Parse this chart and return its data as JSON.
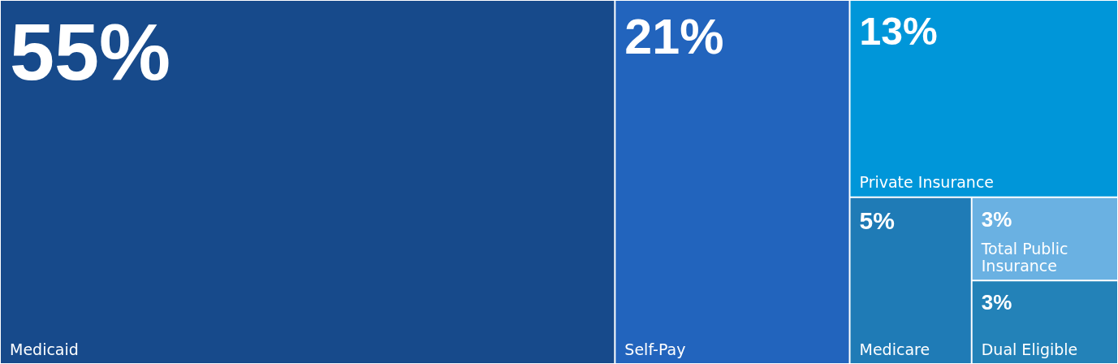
{
  "chart_data": {
    "type": "other",
    "categories": [
      "Medicaid",
      "Self-Pay",
      "Private Insurance",
      "Medicare",
      "Total Public Insurance",
      "Dual Eligible"
    ],
    "values": [
      55,
      21,
      13,
      5,
      3,
      3
    ],
    "value_labels": [
      "55%",
      "21%",
      "13%",
      "5%",
      "3%",
      "3%"
    ],
    "colors": [
      "#174a8b",
      "#2264bd",
      "#0096d9",
      "#1f7bb6",
      "#6ab1e2",
      "#2382b8"
    ]
  }
}
